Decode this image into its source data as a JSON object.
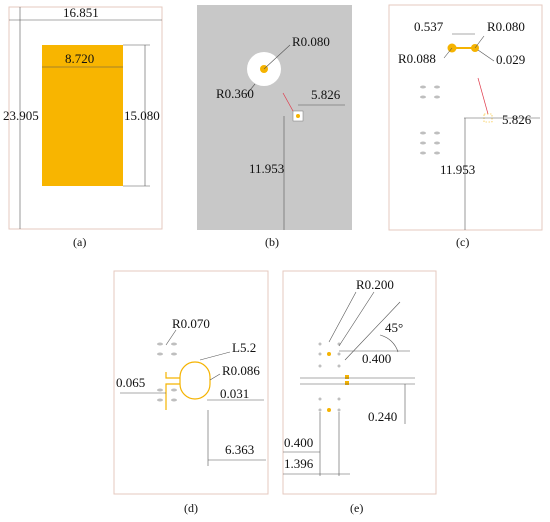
{
  "panels": {
    "a": {
      "caption": "(a)",
      "dims": {
        "width_outer": "16.851",
        "width_inner": "8.720",
        "height_outer": "23.905",
        "height_inner": "15.080"
      },
      "colors": {
        "patch": "#f8b500"
      }
    },
    "b": {
      "caption": "(b)",
      "dims": {
        "r_small": "R0.080",
        "r_large": "R0.360",
        "offset_x": "5.826",
        "offset_y": "11.953"
      },
      "colors": {
        "ground": "#c8c8c8"
      }
    },
    "c": {
      "caption": "(c)",
      "dims": {
        "gap": "0.537",
        "r_right": "R0.080",
        "r_left": "R0.088",
        "width": "0.029",
        "offset_x": "5.826",
        "offset_y": "11.953"
      }
    },
    "d": {
      "caption": "(d)",
      "dims": {
        "r_top": "R0.070",
        "length": "L5.2",
        "spacing_left": "0.065",
        "r_right": "R0.086",
        "gap": "0.031",
        "offset_x": "6.363"
      }
    },
    "e": {
      "caption": "(e)",
      "dims": {
        "radius": "R0.200",
        "angle": "45°",
        "spacing_top": "0.400",
        "spacing_right": "0.240",
        "spacing_bottom": "0.400",
        "offset_x": "1.396"
      }
    }
  }
}
